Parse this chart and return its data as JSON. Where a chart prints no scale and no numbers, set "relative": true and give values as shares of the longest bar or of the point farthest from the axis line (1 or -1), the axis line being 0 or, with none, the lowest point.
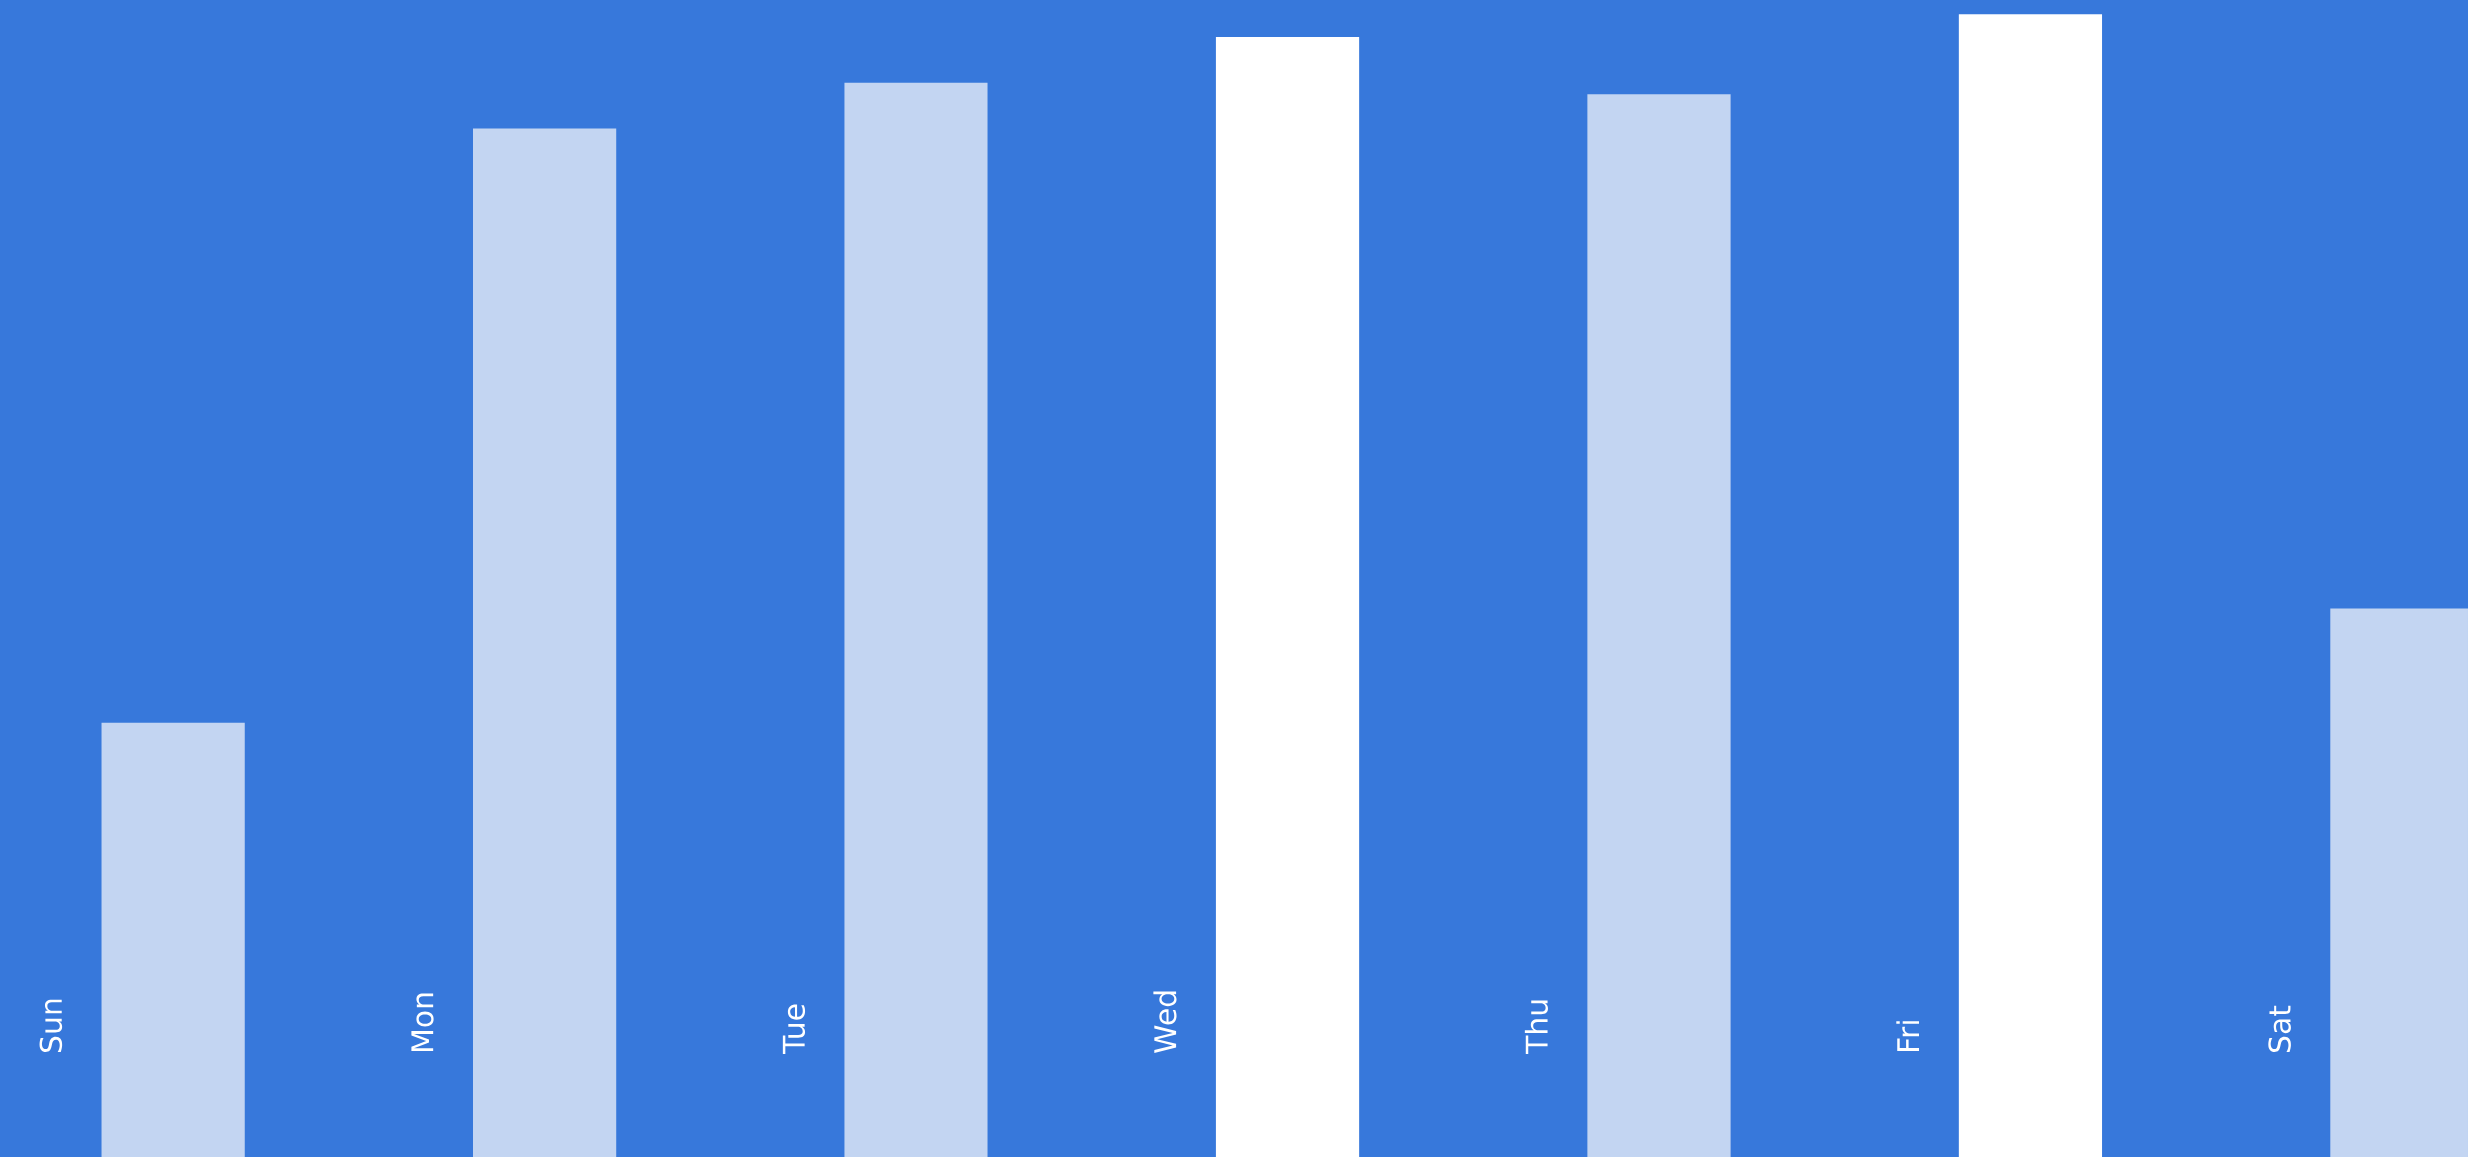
{
  "chart_data": {
    "type": "bar",
    "relative": true,
    "categories": [
      "Sun",
      "Mon",
      "Tue",
      "Wed",
      "Thu",
      "Fri",
      "Sat"
    ],
    "values": [
      0.38,
      0.9,
      0.94,
      0.98,
      0.93,
      1,
      0.48
    ],
    "colors": [
      "#c3d5f2",
      "#c3d5f2",
      "#c3d5f2",
      "#ffffff",
      "#c3d5f2",
      "#ffffff",
      "#c3d5f2"
    ]
  }
}
